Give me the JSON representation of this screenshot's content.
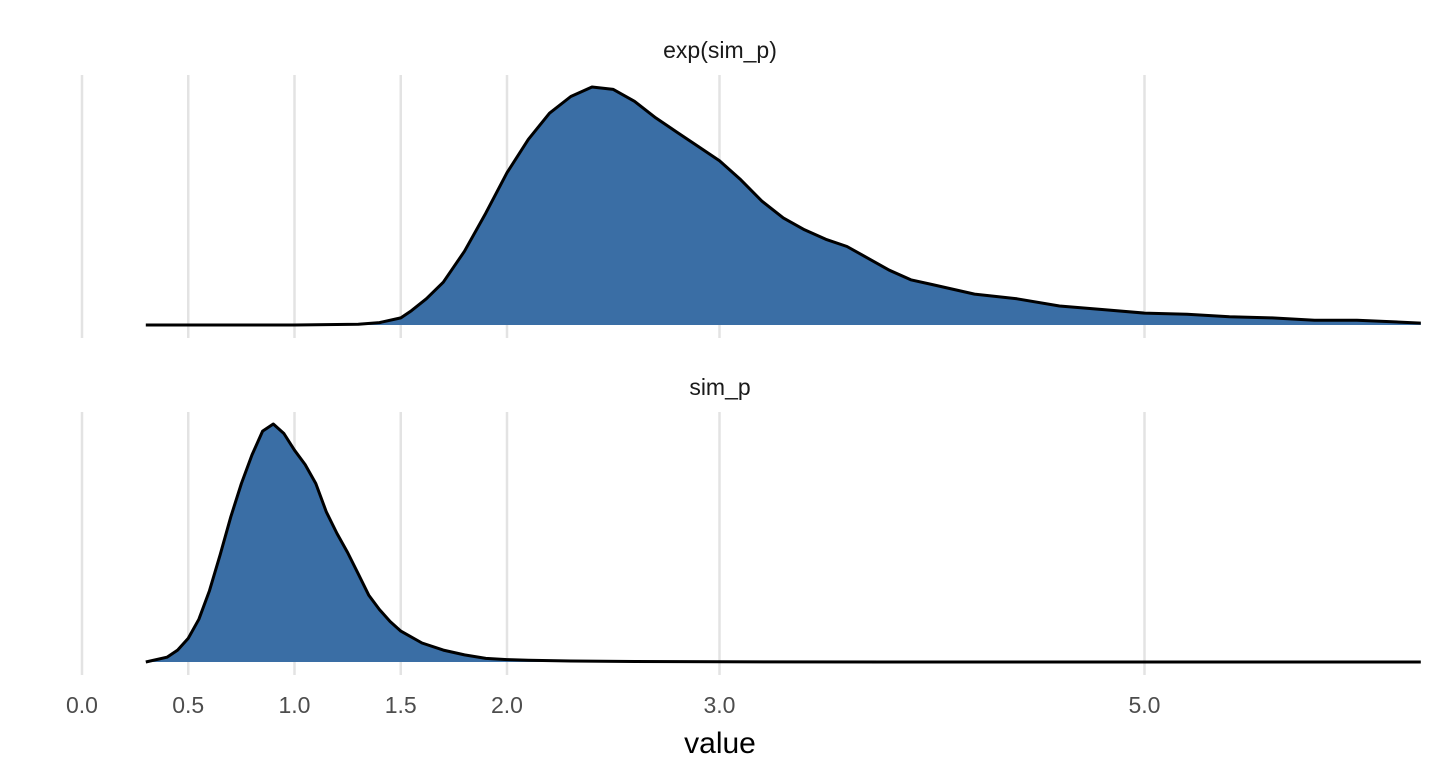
{
  "chart_data": {
    "type": "area",
    "xlabel": "value",
    "ylabel": "",
    "xlim": [
      0,
      6.3
    ],
    "x_ticks": [
      0.0,
      0.5,
      1.0,
      1.5,
      2.0,
      3.0,
      5.0
    ],
    "x_tick_labels": [
      "0.0",
      "0.5",
      "1.0",
      "1.5",
      "2.0",
      "3.0",
      "5.0"
    ],
    "grid": "vertical major gridlines",
    "legend": "none",
    "fill_color": "#3a6ea5",
    "line_color": "#000000",
    "panels": [
      {
        "title": "exp(sim_p)",
        "x": [
          0.3,
          1.0,
          1.3,
          1.4,
          1.5,
          1.55,
          1.62,
          1.7,
          1.8,
          1.9,
          2.0,
          2.1,
          2.2,
          2.3,
          2.4,
          2.5,
          2.6,
          2.7,
          2.8,
          2.9,
          3.0,
          3.1,
          3.2,
          3.3,
          3.4,
          3.5,
          3.6,
          3.7,
          3.8,
          3.9,
          4.0,
          4.2,
          4.4,
          4.6,
          4.8,
          5.0,
          5.2,
          5.4,
          5.6,
          5.8,
          6.0,
          6.2,
          6.3
        ],
        "density": [
          0.0,
          0.0,
          0.003,
          0.01,
          0.03,
          0.06,
          0.11,
          0.18,
          0.31,
          0.47,
          0.64,
          0.78,
          0.89,
          0.96,
          1.0,
          0.99,
          0.94,
          0.87,
          0.81,
          0.75,
          0.69,
          0.61,
          0.52,
          0.45,
          0.4,
          0.36,
          0.33,
          0.28,
          0.23,
          0.19,
          0.17,
          0.13,
          0.11,
          0.08,
          0.065,
          0.05,
          0.045,
          0.035,
          0.03,
          0.02,
          0.02,
          0.012,
          0.008
        ]
      },
      {
        "title": "sim_p",
        "x": [
          0.3,
          0.4,
          0.45,
          0.5,
          0.55,
          0.6,
          0.65,
          0.7,
          0.75,
          0.8,
          0.85,
          0.9,
          0.95,
          1.0,
          1.05,
          1.1,
          1.15,
          1.2,
          1.25,
          1.3,
          1.35,
          1.4,
          1.45,
          1.5,
          1.6,
          1.7,
          1.8,
          1.9,
          2.0,
          2.1,
          2.3,
          2.6,
          3.0,
          4.0,
          5.0,
          6.3
        ],
        "density": [
          0.0,
          0.02,
          0.05,
          0.1,
          0.18,
          0.3,
          0.45,
          0.61,
          0.75,
          0.87,
          0.97,
          1.0,
          0.96,
          0.89,
          0.83,
          0.75,
          0.63,
          0.54,
          0.46,
          0.37,
          0.28,
          0.22,
          0.17,
          0.13,
          0.08,
          0.05,
          0.03,
          0.015,
          0.01,
          0.007,
          0.004,
          0.002,
          0.001,
          0.0,
          0.0,
          0.0
        ]
      }
    ]
  }
}
